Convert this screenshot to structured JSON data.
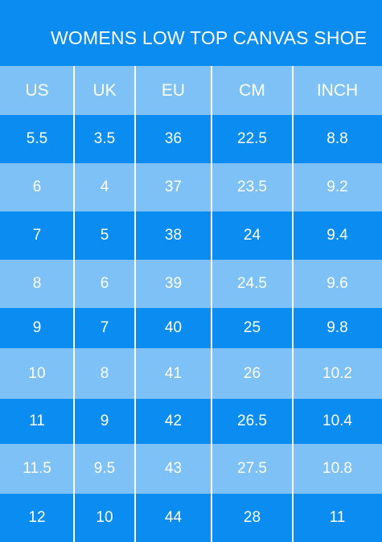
{
  "title": "WOMENS LOW TOP CANVAS SHOE",
  "colors": {
    "dark_row": "#0a8cf0",
    "light_row": "#7ec1f6",
    "text": "#ffffff"
  },
  "headers": [
    "US",
    "UK",
    "EU",
    "CM",
    "INCH"
  ],
  "rows": [
    [
      "5.5",
      "3.5",
      "36",
      "22.5",
      "8.8"
    ],
    [
      "6",
      "4",
      "37",
      "23.5",
      "9.2"
    ],
    [
      "7",
      "5",
      "38",
      "24",
      "9.4"
    ],
    [
      "8",
      "6",
      "39",
      "24.5",
      "9.6"
    ],
    [
      "9",
      "7",
      "40",
      "25",
      "9.8"
    ],
    [
      "10",
      "8",
      "41",
      "26",
      "10.2"
    ],
    [
      "11",
      "9",
      "42",
      "26.5",
      "10.4"
    ],
    [
      "11.5",
      "9.5",
      "43",
      "27.5",
      "10.8"
    ],
    [
      "12",
      "10",
      "44",
      "28",
      "11"
    ]
  ]
}
